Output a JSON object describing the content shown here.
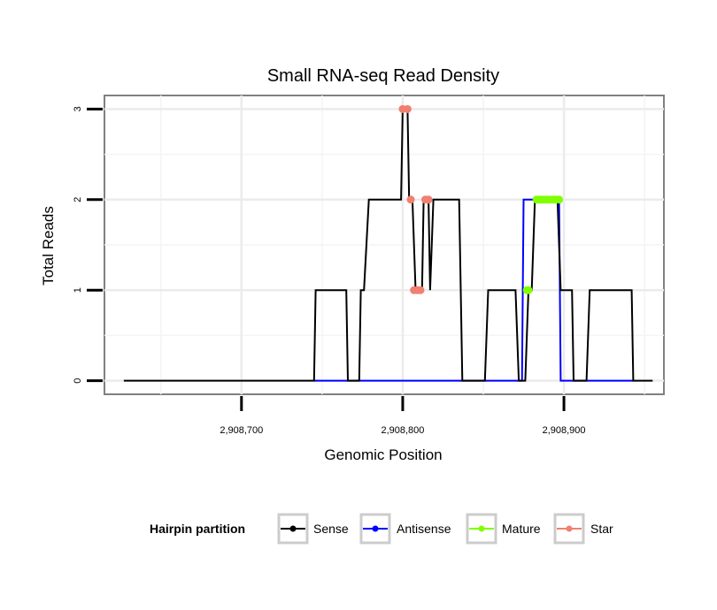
{
  "chart_data": {
    "type": "line",
    "title": "Small RNA-seq Read Density",
    "xlabel": "Genomic Position",
    "ylabel": "Total Reads",
    "xlim": [
      2908615,
      2908962
    ],
    "ylim": [
      -0.15,
      3.15
    ],
    "x_ticks": [
      2908700,
      2908800,
      2908900
    ],
    "x_tick_labels": [
      "2,908,700",
      "2,908,800",
      "2,908,900"
    ],
    "y_ticks": [
      0,
      1,
      2,
      3
    ],
    "y_tick_labels": [
      "0",
      "1",
      "2",
      "3"
    ],
    "grid": true,
    "legend": {
      "title": "Hairpin partition",
      "position": "bottom",
      "entries": [
        {
          "name": "Sense",
          "color": "#000000"
        },
        {
          "name": "Antisense",
          "color": "#0000ff"
        },
        {
          "name": "Mature",
          "color": "#7fff00"
        },
        {
          "name": "Star",
          "color": "#f08070"
        }
      ]
    },
    "series": [
      {
        "name": "Sense",
        "color": "#000000",
        "points": [
          [
            2908627,
            0
          ],
          [
            2908745,
            0
          ],
          [
            2908746,
            1
          ],
          [
            2908765,
            1
          ],
          [
            2908766,
            0
          ],
          [
            2908773,
            0
          ],
          [
            2908774,
            1
          ],
          [
            2908776,
            1
          ],
          [
            2908779,
            2
          ],
          [
            2908799,
            2
          ],
          [
            2908800,
            3
          ],
          [
            2908803,
            3
          ],
          [
            2908804,
            2
          ],
          [
            2908806,
            2
          ],
          [
            2908808,
            1
          ],
          [
            2908812,
            1
          ],
          [
            2908813,
            2
          ],
          [
            2908816,
            2
          ],
          [
            2908817,
            1
          ],
          [
            2908819,
            2
          ],
          [
            2908835,
            2
          ],
          [
            2908837,
            0
          ],
          [
            2908851,
            0
          ],
          [
            2908853,
            1
          ],
          [
            2908870,
            1
          ],
          [
            2908872,
            0
          ],
          [
            2908876,
            0
          ],
          [
            2908878,
            1
          ],
          [
            2908880,
            1
          ],
          [
            2908882,
            2
          ],
          [
            2908896,
            2
          ],
          [
            2908898,
            1
          ],
          [
            2908905,
            1
          ],
          [
            2908906,
            0
          ],
          [
            2908914,
            0
          ],
          [
            2908916,
            1
          ],
          [
            2908942,
            1
          ],
          [
            2908943,
            0
          ],
          [
            2908955,
            0
          ]
        ]
      },
      {
        "name": "Antisense",
        "color": "#0000ff",
        "points": [
          [
            2908745,
            0
          ],
          [
            2908874,
            0
          ],
          [
            2908875,
            2
          ],
          [
            2908897,
            2
          ],
          [
            2908898,
            0
          ],
          [
            2908943,
            0
          ]
        ]
      }
    ],
    "marker_series": [
      {
        "name": "Mature",
        "color": "#7fff00",
        "points": [
          [
            2908877,
            1
          ],
          [
            2908878,
            1
          ],
          [
            2908883,
            2
          ],
          [
            2908885,
            2
          ],
          [
            2908887,
            2
          ],
          [
            2908889,
            2
          ],
          [
            2908891,
            2
          ],
          [
            2908893,
            2
          ],
          [
            2908895,
            2
          ],
          [
            2908897,
            2
          ]
        ]
      },
      {
        "name": "Star",
        "color": "#f08070",
        "points": [
          [
            2908800,
            3
          ],
          [
            2908803,
            3
          ],
          [
            2908805,
            2
          ],
          [
            2908807,
            1
          ],
          [
            2908809,
            1
          ],
          [
            2908811,
            1
          ],
          [
            2908814,
            2
          ],
          [
            2908816,
            2
          ]
        ]
      }
    ]
  }
}
